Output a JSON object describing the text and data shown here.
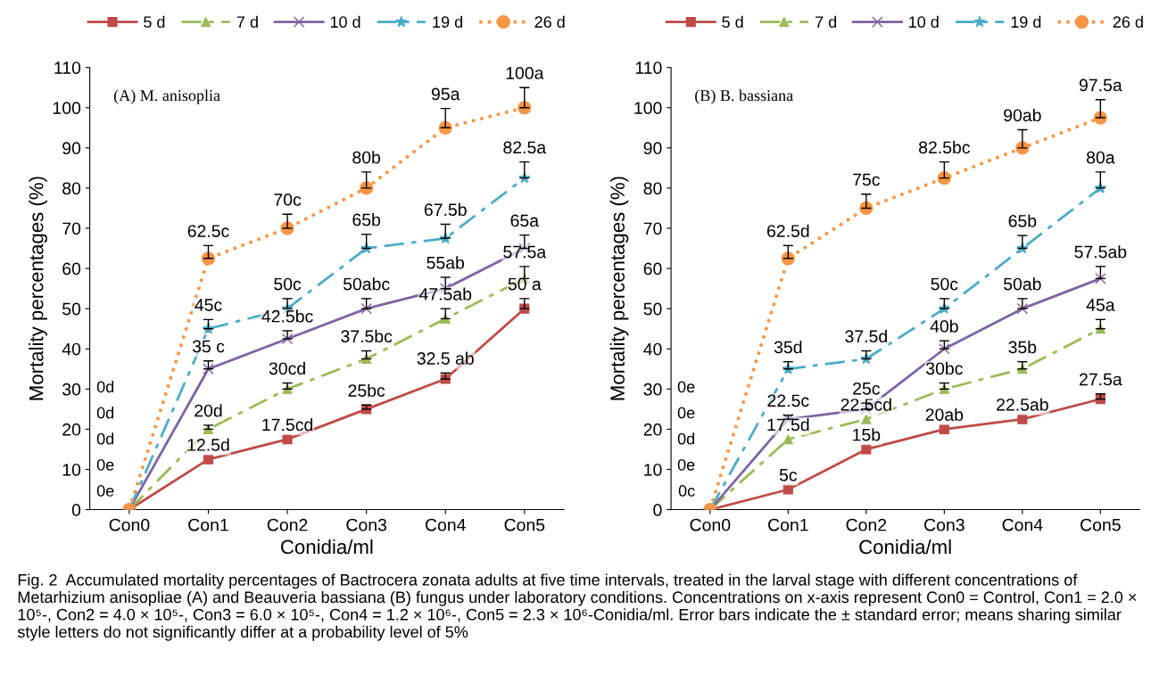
{
  "chart_data": [
    {
      "type": "line",
      "categories": [
        "Con0",
        "Con1",
        "Con2",
        "Con3",
        "Con4",
        "Con5"
      ],
      "xlabel": "Conidia/ml",
      "ylabel": "Mortality percentages (%)",
      "ylim": [
        0,
        110
      ],
      "yticks": [
        0,
        10,
        20,
        30,
        40,
        50,
        60,
        70,
        80,
        90,
        100,
        110
      ],
      "grid": false,
      "legend": "top",
      "annotations": [
        "(A) M. anisoplia",
        "0d",
        "0d",
        "0d",
        "0e",
        "0e",
        "Fig. 2  Accumulated mortality percentages of Bactrocera zonata adults at five time intervals, treated in the larval stage with different concentrations of Metarhizium anisopliae (A) and Beauveria bassiana (B) fungus under laboratory conditions. Concentrations on x-axis represent Con0 = Control, Con1 = 2.0 × 10⁵-, Con2 = 4.0 × 10⁵-, Con3 = 6.0 × 10⁵-, Con4 = 1.2 × 10⁶-, Con5 = 2.3 × 10⁶-Conidia/ml. Error bars indicate the ± standard error; means sharing similar style letters do not significantly differ at a probability level of 5%"
      ],
      "series": [
        {
          "name": "5 d",
          "color": "#be4b48",
          "marker": "square",
          "line_style": "solid",
          "values": [
            0,
            12.5,
            17.5,
            25,
            32.5,
            50
          ],
          "errors": [
            null,
            null,
            null,
            [
              25,
              26
            ],
            [
              32.5,
              34
            ],
            [
              50,
              52.5
            ]
          ],
          "value_labels": [
            null,
            "12.5d",
            "17.5cd",
            "25bc",
            "32.5 ab",
            "50 a"
          ]
        },
        {
          "name": "7 d",
          "color": "#9bbb59",
          "marker": "triangle",
          "line_style": "dashed",
          "values": [
            0,
            20,
            30,
            37.5,
            47.5,
            57.5
          ],
          "errors": [
            null,
            [
              20,
              21
            ],
            [
              30,
              31.5
            ],
            [
              37.5,
              39.5
            ],
            [
              47.5,
              50
            ],
            [
              57.5,
              60.5
            ]
          ],
          "value_labels": [
            null,
            "20d",
            "30cd",
            "37.5bc",
            "47.5ab",
            "57.5a"
          ]
        },
        {
          "name": "10 d",
          "color": "#7f63a1",
          "marker": "cross",
          "line_style": "solid",
          "values": [
            0,
            35,
            42.5,
            50,
            55,
            65
          ],
          "errors": [
            null,
            [
              35,
              37
            ],
            [
              42.5,
              44.5
            ],
            [
              50,
              52.5
            ],
            [
              55,
              57.8
            ],
            [
              65,
              68.3
            ]
          ],
          "value_labels": [
            null,
            "35 c",
            "42.5bc",
            "50abc",
            "55ab",
            "65a"
          ]
        },
        {
          "name": "19 d",
          "color": "#4bacc6",
          "marker": "star",
          "line_style": "dashed",
          "values": [
            0,
            45,
            50,
            65,
            67.5,
            82.5
          ],
          "errors": [
            null,
            [
              45,
              47.3
            ],
            [
              50,
              52.5
            ],
            [
              65,
              68.5
            ],
            [
              67.5,
              71
            ],
            [
              82.5,
              86.5
            ]
          ],
          "value_labels": [
            null,
            "45c",
            "50c",
            "65b",
            "67.5b",
            "82.5a"
          ]
        },
        {
          "name": "26 d",
          "color": "#f79646",
          "marker": "circle",
          "line_style": "dotted",
          "values": [
            0,
            62.5,
            70,
            80,
            95,
            100
          ],
          "errors": [
            null,
            [
              62.5,
              65.7
            ],
            [
              70,
              73.5
            ],
            [
              80,
              84
            ],
            [
              95,
              99.8
            ],
            [
              100,
              105
            ]
          ],
          "value_labels": [
            null,
            "62.5c",
            "70c",
            "80b",
            "95a",
            "100a"
          ]
        }
      ]
    },
    {
      "type": "line",
      "categories": [
        "Con0",
        "Con1",
        "Con2",
        "Con3",
        "Con4",
        "Con5"
      ],
      "xlabel": "Conidia/ml",
      "ylabel": "Mortality percentages (%)",
      "ylim": [
        0,
        110
      ],
      "yticks": [
        0,
        10,
        20,
        30,
        40,
        50,
        60,
        70,
        80,
        90,
        100,
        110
      ],
      "grid": false,
      "legend": "top",
      "annotations": [
        "(B) B. bassiana",
        "0e",
        "0e",
        "0d",
        "0e",
        "0c"
      ],
      "series": [
        {
          "name": "5 d",
          "color": "#be4b48",
          "marker": "square",
          "line_style": "solid",
          "values": [
            0,
            5,
            15,
            20,
            22.5,
            27.5
          ],
          "errors": [
            null,
            null,
            null,
            null,
            null,
            [
              27.5,
              28.8
            ]
          ],
          "value_labels": [
            null,
            "5c",
            "15b",
            "20ab",
            "22.5ab",
            "27.5a"
          ]
        },
        {
          "name": "7 d",
          "color": "#9bbb59",
          "marker": "triangle",
          "line_style": "dashed",
          "values": [
            0,
            17.5,
            22.5,
            30,
            35,
            45
          ],
          "errors": [
            null,
            null,
            null,
            [
              30,
              31.5
            ],
            [
              35,
              36.8
            ],
            [
              45,
              47.3
            ]
          ],
          "value_labels": [
            null,
            "17.5d",
            "22.5cd",
            "30bc",
            "35b",
            "45a"
          ]
        },
        {
          "name": "10 d",
          "color": "#7f63a1",
          "marker": "cross",
          "line_style": "solid",
          "values": [
            0,
            22.5,
            25,
            40,
            50,
            57.5
          ],
          "errors": [
            null,
            [
              22.5,
              23.5
            ],
            [
              25,
              26.5
            ],
            [
              40,
              42
            ],
            [
              50,
              52.5
            ],
            [
              57.5,
              60.5
            ]
          ],
          "value_labels": [
            null,
            "22.5c",
            "25c",
            "40b",
            "50ab",
            "57.5ab"
          ]
        },
        {
          "name": "19 d",
          "color": "#4bacc6",
          "marker": "star",
          "line_style": "dashed",
          "values": [
            0,
            35,
            37.5,
            50,
            65,
            80
          ],
          "errors": [
            null,
            [
              35,
              36.8
            ],
            [
              37.5,
              39.5
            ],
            [
              50,
              52.5
            ],
            [
              65,
              68.2
            ],
            [
              80,
              84
            ]
          ],
          "value_labels": [
            null,
            "35d",
            "37.5d",
            "50c",
            "65b",
            "80a"
          ]
        },
        {
          "name": "26 d",
          "color": "#f79646",
          "marker": "circle",
          "line_style": "dotted",
          "values": [
            0,
            62.5,
            75,
            82.5,
            90,
            97.5
          ],
          "errors": [
            null,
            [
              62.5,
              65.7
            ],
            [
              75,
              78.5
            ],
            [
              82.5,
              86.5
            ],
            [
              90,
              94.5
            ],
            [
              97.5,
              102
            ]
          ],
          "value_labels": [
            null,
            "62.5d",
            "75c",
            "82.5bc",
            "90ab",
            "97.5a"
          ]
        }
      ]
    }
  ]
}
